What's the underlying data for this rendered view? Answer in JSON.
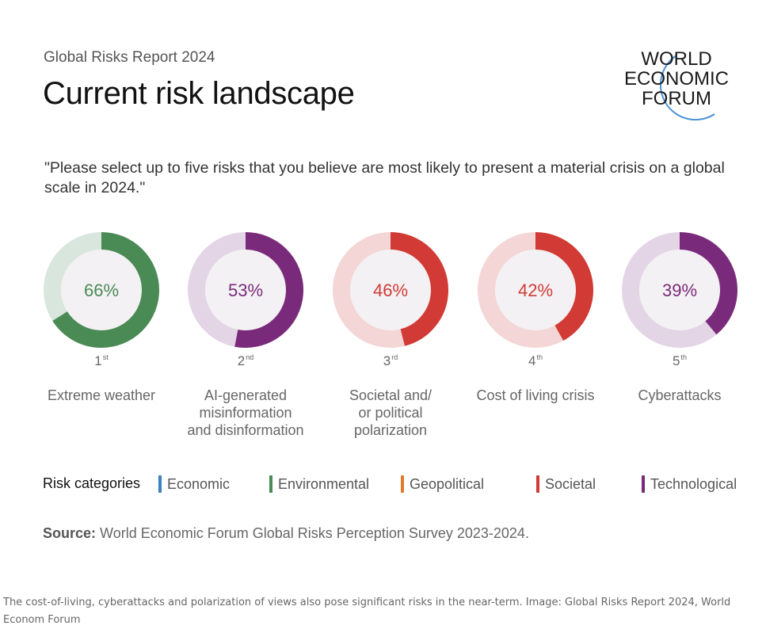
{
  "header": {
    "report_label": "Global Risks Report 2024",
    "title": "Current risk landscape",
    "logo_lines": [
      "WORLD",
      "ECONOMIC",
      "FORUM"
    ]
  },
  "question": "\"Please select up to five risks that you believe are most likely to present a material crisis on a global scale in 2024.\"",
  "chart_data": {
    "type": "donut",
    "items": [
      {
        "rank": "1",
        "suffix": "st",
        "label_lines": [
          "Extreme weather"
        ],
        "value": 66,
        "value_label": "66%",
        "category": "Environmental",
        "color": "#4a8a55",
        "track_color": "#d9e6dd"
      },
      {
        "rank": "2",
        "suffix": "nd",
        "label_lines": [
          "AI-generated",
          "misinformation",
          "and disinformation"
        ],
        "value": 53,
        "value_label": "53%",
        "category": "Technological",
        "color": "#7a2a7a",
        "track_color": "#e3d5e6"
      },
      {
        "rank": "3",
        "suffix": "rd",
        "label_lines": [
          "Societal and/",
          "or political",
          "polarization"
        ],
        "value": 46,
        "value_label": "46%",
        "category": "Societal",
        "color": "#d13a35",
        "track_color": "#f3d6d5"
      },
      {
        "rank": "4",
        "suffix": "th",
        "label_lines": [
          "Cost of living crisis"
        ],
        "value": 42,
        "value_label": "42%",
        "category": "Societal",
        "color": "#d13a35",
        "track_color": "#f3d6d5"
      },
      {
        "rank": "5",
        "suffix": "th",
        "label_lines": [
          "Cyberattacks"
        ],
        "value": 39,
        "value_label": "39%",
        "category": "Technological",
        "color": "#7a2a7a",
        "track_color": "#e3d5e6"
      }
    ]
  },
  "legend": {
    "title": "Risk categories",
    "items": [
      {
        "label": "Economic",
        "color": "#3b7fc4"
      },
      {
        "label": "Environmental",
        "color": "#4a8a55"
      },
      {
        "label": "Geopolitical",
        "color": "#e07b2e"
      },
      {
        "label": "Societal",
        "color": "#d13a35"
      },
      {
        "label": "Technological",
        "color": "#7a2a7a"
      }
    ]
  },
  "source": {
    "bold": "Source:",
    "text": " World Economic Forum Global Risks Perception Survey 2023-2024."
  },
  "caption": "The cost-of-living, cyberattacks and polarization of views also pose significant risks in the near-term. Image: Global Risks Report 2024, World Econom Forum"
}
